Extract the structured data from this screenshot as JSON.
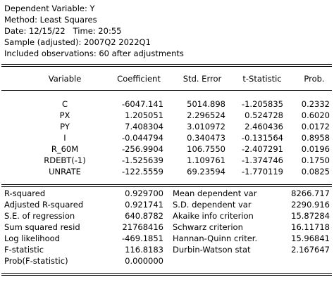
{
  "header": {
    "lines": [
      "Dependent Variable: Y",
      "Method: Least Squares",
      "Date: 12/15/22   Time: 20:55",
      "Sample (adjusted): 2007Q2 2022Q1",
      "Included observations: 60 after adjustments"
    ]
  },
  "table": {
    "columns": [
      "Variable",
      "Coefficient",
      "Std. Error",
      "t-Statistic",
      "Prob."
    ],
    "rows": [
      [
        "C",
        "-6047.141",
        "5014.898",
        "-1.205835",
        "0.2332"
      ],
      [
        "PX",
        "1.205051",
        "2.296524",
        "0.524728",
        "0.6020"
      ],
      [
        "PY",
        "7.408304",
        "3.010972",
        "2.460436",
        "0.0172"
      ],
      [
        "I",
        "-0.044794",
        "0.340473",
        "-0.131564",
        "0.8958"
      ],
      [
        "R_60M",
        "-256.9904",
        "106.7550",
        "-2.407291",
        "0.0196"
      ],
      [
        "RDEBT(-1)",
        "-1.525639",
        "1.109761",
        "-1.374746",
        "0.1750"
      ],
      [
        "UNRATE",
        "-122.5559",
        "69.23594",
        "-1.770119",
        "0.0825"
      ]
    ]
  },
  "statistics": {
    "rows": [
      [
        "R-squared",
        "0.929700",
        "Mean dependent var",
        "8266.717"
      ],
      [
        "Adjusted R-squared",
        "0.921741",
        "S.D. dependent var",
        "2290.916"
      ],
      [
        "S.E. of regression",
        "640.8782",
        "Akaike info criterion",
        "15.87284"
      ],
      [
        "Sum squared resid",
        "21768416",
        "Schwarz criterion",
        "16.11718"
      ],
      [
        "Log likelihood",
        "-469.1851",
        "Hannan-Quinn criter.",
        "15.96841"
      ],
      [
        "F-statistic",
        "116.8183",
        "Durbin-Watson stat",
        "2.167647"
      ],
      [
        "Prob(F-statistic)",
        "0.000000"
      ]
    ]
  }
}
